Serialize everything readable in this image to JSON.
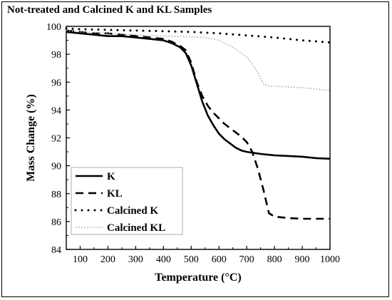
{
  "chart_data": {
    "type": "line",
    "title": "Not-treated and Calcined K and KL Samples",
    "xlabel": "Temperature (°C)",
    "ylabel": "Mass Change (%)",
    "xlim": [
      50,
      1000
    ],
    "ylim": [
      84,
      100
    ],
    "xticks": [
      100,
      200,
      300,
      400,
      500,
      600,
      700,
      800,
      900,
      1000
    ],
    "yticks": [
      84,
      86,
      88,
      90,
      92,
      94,
      96,
      98,
      100
    ],
    "grid": false,
    "legend_position": "bottom-left",
    "series": [
      {
        "name": "K",
        "style": "solid",
        "color": "#000000",
        "x": [
          50,
          100,
          150,
          200,
          250,
          300,
          350,
          400,
          430,
          460,
          480,
          500,
          520,
          540,
          560,
          580,
          600,
          620,
          640,
          660,
          680,
          700,
          750,
          800,
          850,
          900,
          950,
          1000
        ],
        "y": [
          99.6,
          99.5,
          99.4,
          99.3,
          99.3,
          99.2,
          99.1,
          99.0,
          98.8,
          98.5,
          98.1,
          97.2,
          95.9,
          94.6,
          93.6,
          92.9,
          92.3,
          91.9,
          91.6,
          91.3,
          91.1,
          91.0,
          90.85,
          90.75,
          90.7,
          90.65,
          90.55,
          90.5
        ]
      },
      {
        "name": "KL",
        "style": "dashed",
        "color": "#000000",
        "x": [
          50,
          100,
          150,
          200,
          250,
          300,
          350,
          400,
          430,
          460,
          480,
          500,
          520,
          540,
          560,
          580,
          600,
          620,
          640,
          660,
          680,
          700,
          720,
          740,
          760,
          780,
          800,
          850,
          900,
          950,
          1000
        ],
        "y": [
          99.7,
          99.6,
          99.5,
          99.5,
          99.4,
          99.3,
          99.2,
          99.1,
          98.9,
          98.6,
          98.3,
          97.4,
          96.0,
          95.0,
          94.3,
          93.8,
          93.4,
          93.0,
          92.7,
          92.4,
          92.1,
          91.7,
          91.0,
          89.8,
          88.3,
          86.6,
          86.35,
          86.25,
          86.2,
          86.2,
          86.2
        ]
      },
      {
        "name": "Calcined K",
        "style": "dotted",
        "color": "#000000",
        "x": [
          50,
          100,
          200,
          300,
          400,
          500,
          600,
          700,
          800,
          900,
          1000
        ],
        "y": [
          99.85,
          99.8,
          99.75,
          99.7,
          99.65,
          99.6,
          99.5,
          99.35,
          99.2,
          99.0,
          98.85
        ]
      },
      {
        "name": "Calcined KL",
        "style": "dotted-fine",
        "color": "#aaaaaa",
        "x": [
          50,
          100,
          200,
          300,
          400,
          500,
          550,
          600,
          650,
          700,
          720,
          740,
          760,
          780,
          800,
          850,
          900,
          950,
          1000
        ],
        "y": [
          99.7,
          99.6,
          99.5,
          99.4,
          99.3,
          99.25,
          99.2,
          99.0,
          98.5,
          97.8,
          97.3,
          96.7,
          95.9,
          95.7,
          95.7,
          95.65,
          95.6,
          95.5,
          95.4
        ]
      }
    ]
  }
}
